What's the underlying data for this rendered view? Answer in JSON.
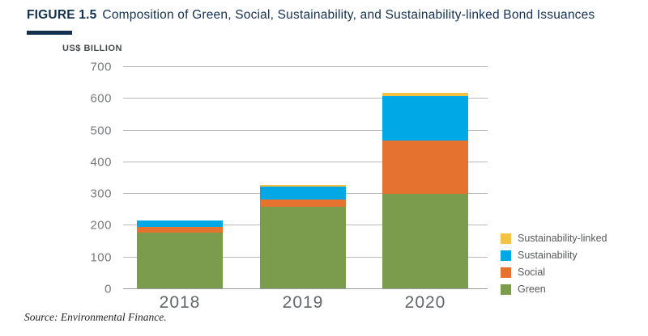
{
  "figure": {
    "label": "FIGURE 1.5",
    "title": "Composition of Green, Social, Sustainability, and Sustainability-linked Bond Issuances",
    "source": "Source: Environmental Finance."
  },
  "chart_data": {
    "type": "bar",
    "stacked": true,
    "title": "Composition of Green, Social, Sustainability, and Sustainability-linked Bond Issuances",
    "unit_label": "US$ BILLION",
    "xlabel": "",
    "ylabel": "US$ BILLION",
    "categories": [
      "2018",
      "2019",
      "2020"
    ],
    "series": [
      {
        "name": "Green",
        "color": "#7C9C4D",
        "values": [
          176,
          257,
          298
        ]
      },
      {
        "name": "Social",
        "color": "#E5722E",
        "values": [
          18,
          23,
          168
        ]
      },
      {
        "name": "Sustainability",
        "color": "#00A9E6",
        "values": [
          21,
          41,
          139
        ]
      },
      {
        "name": "Sustainability-linked",
        "color": "#F5C243",
        "values": [
          0,
          5,
          11
        ]
      }
    ],
    "totals": [
      215,
      326,
      616
    ],
    "legend": [
      "Sustainability-linked",
      "Sustainability",
      "Social",
      "Green"
    ],
    "legend_position": "right-bottom",
    "ylim": [
      0,
      700
    ],
    "ytick_step": 100,
    "grid": true
  },
  "colors": {
    "title_navy": "#14304F",
    "gridline": "#B9BABC",
    "axis_text": "#77787A",
    "year_text": "#636569",
    "legend_text": "#58595B"
  }
}
